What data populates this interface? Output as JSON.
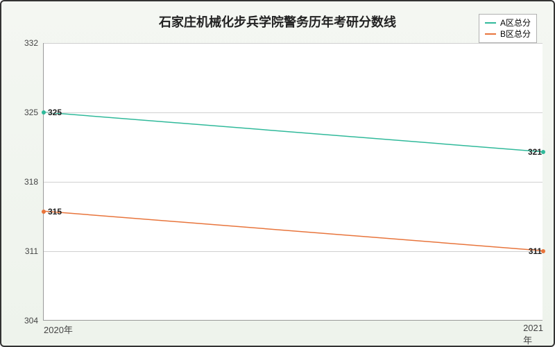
{
  "chart": {
    "type": "line",
    "title": "石家庄机械化步兵学院警务历年考研分数线",
    "title_fontsize": 18,
    "background_gradient": [
      "#f4f7f2",
      "#eef3ec"
    ],
    "plot_background": "#ffffff",
    "border_color": "#333333",
    "grid_color": "#d0d0d0",
    "axis_color": "#999999",
    "label_color": "#444444",
    "data_label_color": "#222222",
    "label_fontsize": 12,
    "ylim": [
      304,
      332
    ],
    "ytick_step": 7,
    "yticks": [
      304,
      311,
      318,
      325,
      332
    ],
    "categories": [
      "2020年",
      "2021年"
    ],
    "series": [
      {
        "name": "A区总分",
        "color": "#2fb99a",
        "line_width": 1.5,
        "values": [
          325,
          321
        ]
      },
      {
        "name": "B区总分",
        "color": "#e8743b",
        "line_width": 1.5,
        "values": [
          315,
          311
        ]
      }
    ],
    "legend": {
      "position": "top-right",
      "background": "#ffffff",
      "border": "#b0b0b0"
    }
  }
}
